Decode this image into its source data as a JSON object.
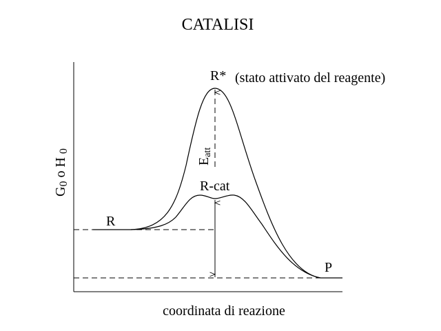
{
  "title": "CATALISI",
  "labels": {
    "r_star": "R*",
    "r_star_note": "(stato attivato del reagente)",
    "e_att": "E",
    "e_att_sub": "att",
    "r_cat": "R-cat",
    "r": "R",
    "p": "P"
  },
  "axes": {
    "y_label": {
      "g": "G",
      "g_sub": "0",
      "h": " o H ",
      "h_sub": "0"
    },
    "x_label": "coordinata di reazione"
  }
}
